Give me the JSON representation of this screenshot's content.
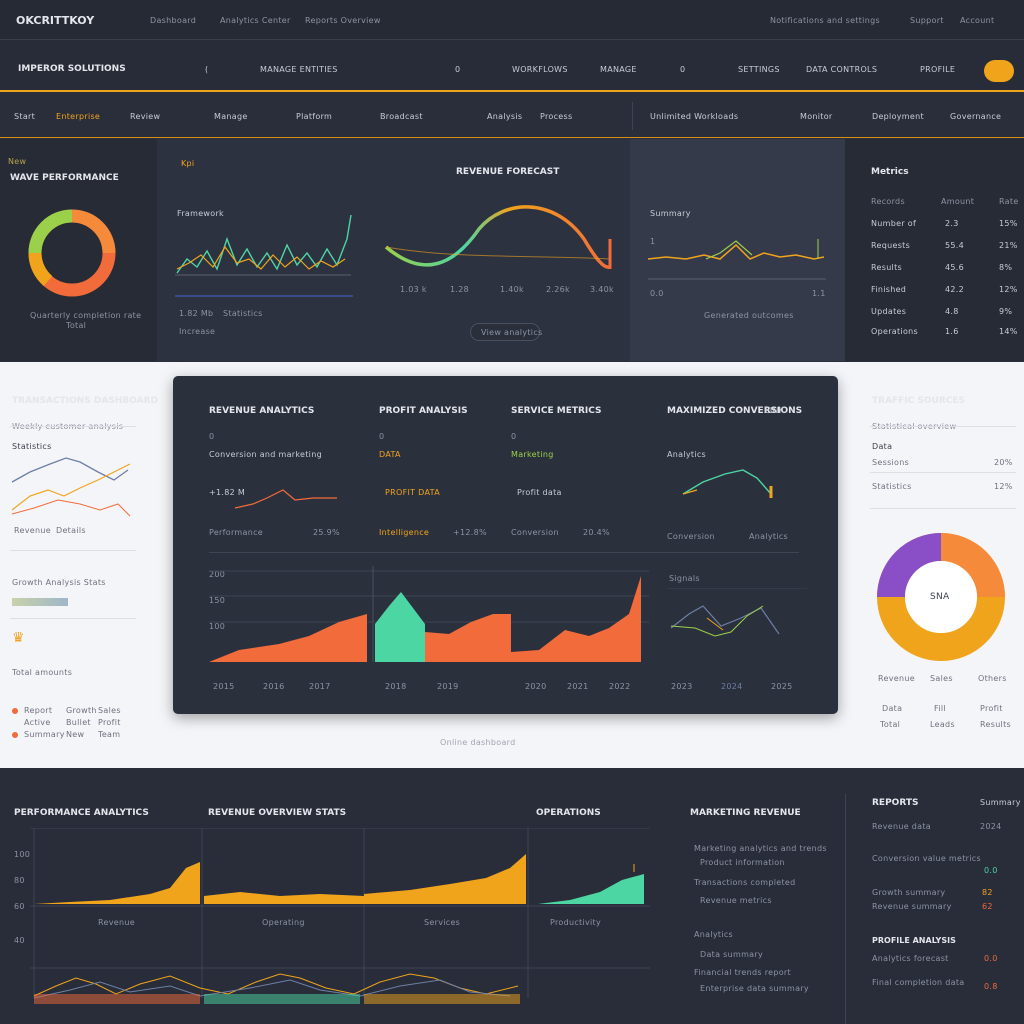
{
  "header": {
    "brand": "OKCRITTKOY",
    "nav": [
      "Dashboard",
      "Analytics Center",
      "Reports Overview"
    ],
    "right_links": [
      "Notifications and settings",
      "Support",
      "Account"
    ]
  },
  "navbar": {
    "title": "IMPEROR SOLUTIONS",
    "items": [
      "(",
      "MANAGE ENTITIES",
      "0",
      "WORKFLOWS",
      "MANAGE",
      "0",
      "SETTINGS",
      "DATA CONTROLS",
      "PROFILE"
    ]
  },
  "tabs": [
    "Start",
    "Enterprise",
    "Review",
    "Manage",
    "Platform",
    "Broadcast",
    "Analysis",
    "Process",
    "Unlimited Workloads",
    "Monitor",
    "Deployment",
    "Governance"
  ],
  "row1": {
    "left_badge": "New",
    "left_title": "WAVE PERFORMANCE",
    "left_caption": "Quarterly completion rate",
    "left_caption2": "Total",
    "p2_label": "Kpi",
    "p2_title": "Framework",
    "p2_foot1": "1.82 Mb",
    "p2_foot2": "Statistics",
    "p2_foot3": "Increase",
    "p3_title": "REVENUE FORECAST",
    "p3_ticks": [
      "1.03 k",
      "1.28",
      "1.40k",
      "2.26k",
      "3.40k"
    ],
    "p3_button": "View analytics",
    "p4_title": "Summary",
    "p4_ticks": [
      "1",
      "0.0",
      "1.1"
    ],
    "p4_caption": "Generated outcomes",
    "p5_title": "Metrics",
    "p5_rows": [
      [
        "Records",
        "Amount",
        "Rate"
      ],
      [
        "Number of",
        "2.3",
        "15%"
      ],
      [
        "Requests",
        "55.4",
        "21%"
      ],
      [
        "Results",
        "45.6",
        "8%"
      ],
      [
        "Finished",
        "42.2",
        "12%"
      ],
      [
        "Updates",
        "4.8",
        "9%"
      ],
      [
        "Operations",
        "1.6",
        "14%"
      ]
    ]
  },
  "light_left": {
    "title": "TRANSACTIONS DASHBOARD",
    "sub": "Weekly customer analysis",
    "chart_label": "Statistics",
    "foot1": "Revenue",
    "foot2": "Details",
    "mid_label": "Growth Analysis Stats",
    "mini_rows": [
      [
        "Report",
        "Growth",
        "Sales"
      ],
      [
        "Active",
        "Bullet",
        "Profit"
      ],
      [
        "Summary",
        "New",
        "Team"
      ]
    ],
    "legend": "Total amounts"
  },
  "card": {
    "col_titles": [
      "REVENUE ANALYTICS",
      "PROFIT ANALYSIS",
      "SERVICE METRICS",
      "MAXIMIZED CONVERSIONS",
      "LINK"
    ],
    "col_numbers": [
      "0",
      "0",
      "0"
    ],
    "col_subs": [
      "Conversion and marketing",
      "DATA",
      "Marketing"
    ],
    "col_vals": [
      "+1.82 M",
      "PROFIT DATA",
      "Profit data"
    ],
    "col_vals2": [
      "25.9%",
      "+12.8%",
      "20.4%"
    ],
    "col_feet": [
      "Performance",
      "Intelligence",
      "Conversion"
    ],
    "right_foot": [
      "Conversion",
      "Analytics"
    ],
    "area_label": "Signals",
    "area_ticks": [
      "200",
      "150",
      "100"
    ],
    "bottom_ticks": [
      "2015",
      "2016",
      "2017",
      "2018",
      "2019",
      "2020",
      "2021",
      "2022",
      "2023",
      "2024",
      "2025"
    ],
    "caption": "Online dashboard"
  },
  "light_right": {
    "title": "TRAFFIC SOURCES",
    "sub": "Statistical overview",
    "rows": [
      [
        "Data",
        ""
      ],
      [
        "Sessions",
        "20%"
      ],
      [
        "Statistics",
        "12%"
      ]
    ],
    "donut_label": "SNA",
    "legend_rows": [
      [
        "Revenue",
        "Sales",
        "Others"
      ],
      [
        "Data",
        "Fill",
        "Profit"
      ],
      [
        "Total",
        "Leads",
        "Results"
      ]
    ]
  },
  "bottom": {
    "titles": [
      "PERFORMANCE ANALYTICS",
      "REVENUE OVERVIEW STATS",
      "OPERATIONS",
      "MARKETING REVENUE"
    ],
    "y_ticks": [
      "100",
      "80",
      "60",
      "40"
    ],
    "col_feet": [
      "Revenue",
      "Operating",
      "Services",
      "Productivity"
    ],
    "mid_rows": [
      "Marketing analytics and trends",
      "Product information",
      "Transactions completed",
      "Revenue metrics",
      "Analytics",
      "Data summary",
      "Financial trends report",
      "Enterprise data summary"
    ],
    "right_title": "REPORTS",
    "right_sub": "Summary",
    "right_rows": [
      [
        "Revenue data",
        "2024"
      ],
      [
        "Conversion value metrics",
        "0.0"
      ],
      [
        "Growth summary",
        "82"
      ],
      [
        "Revenue summary",
        "62"
      ],
      [
        "PROFILE ANALYSIS",
        ""
      ],
      [
        "Analytics forecast",
        "0.0"
      ],
      [
        "Final completion data",
        "0.8"
      ]
    ]
  },
  "colors": {
    "orange": "#f0a41c",
    "coral": "#f26b3a",
    "teal": "#4cd6a3",
    "green": "#9bd04a",
    "purple": "#8a4fc7"
  }
}
